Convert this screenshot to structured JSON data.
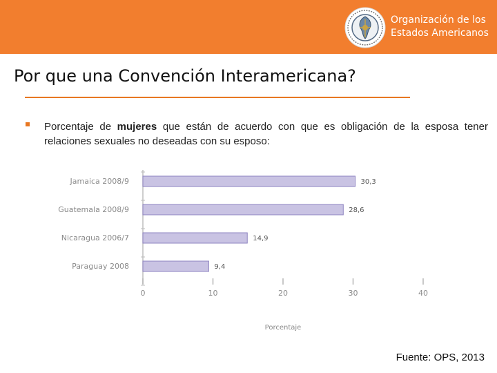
{
  "header": {
    "org_line1": "Organización de los",
    "org_line2": "Estados Americanos",
    "colors": {
      "band": "#f27e2e",
      "text": "#ffffff"
    },
    "logo_icon": "oas-seal-icon"
  },
  "slide": {
    "title": "Por que una Convención Interamericana?",
    "bullet": {
      "text_before": "Porcentaje de",
      "text_bold": "mujeres",
      "text_after": "que están de acuerdo con que es obligación de la esposa tener relaciones sexuales no deseadas con su esposo:"
    },
    "source": "Fuente: OPS, 2013"
  },
  "chart_data": {
    "type": "bar",
    "orientation": "horizontal",
    "categories": [
      "Jamaica 2008/9",
      "Guatemala 2008/9",
      "Nicaragua 2006/7",
      "Paraguay 2008"
    ],
    "values": [
      30.3,
      28.6,
      14.9,
      9.4
    ],
    "value_labels": [
      "30,3",
      "28,6",
      "14,9",
      "9,4"
    ],
    "xlabel": "Porcentaje",
    "xlim": [
      0,
      40
    ],
    "xticks": [
      "0",
      "10",
      "20",
      "30",
      "40"
    ],
    "bar_color": "#c9c3e3",
    "bar_border": "#8d83c0",
    "grid": false
  }
}
